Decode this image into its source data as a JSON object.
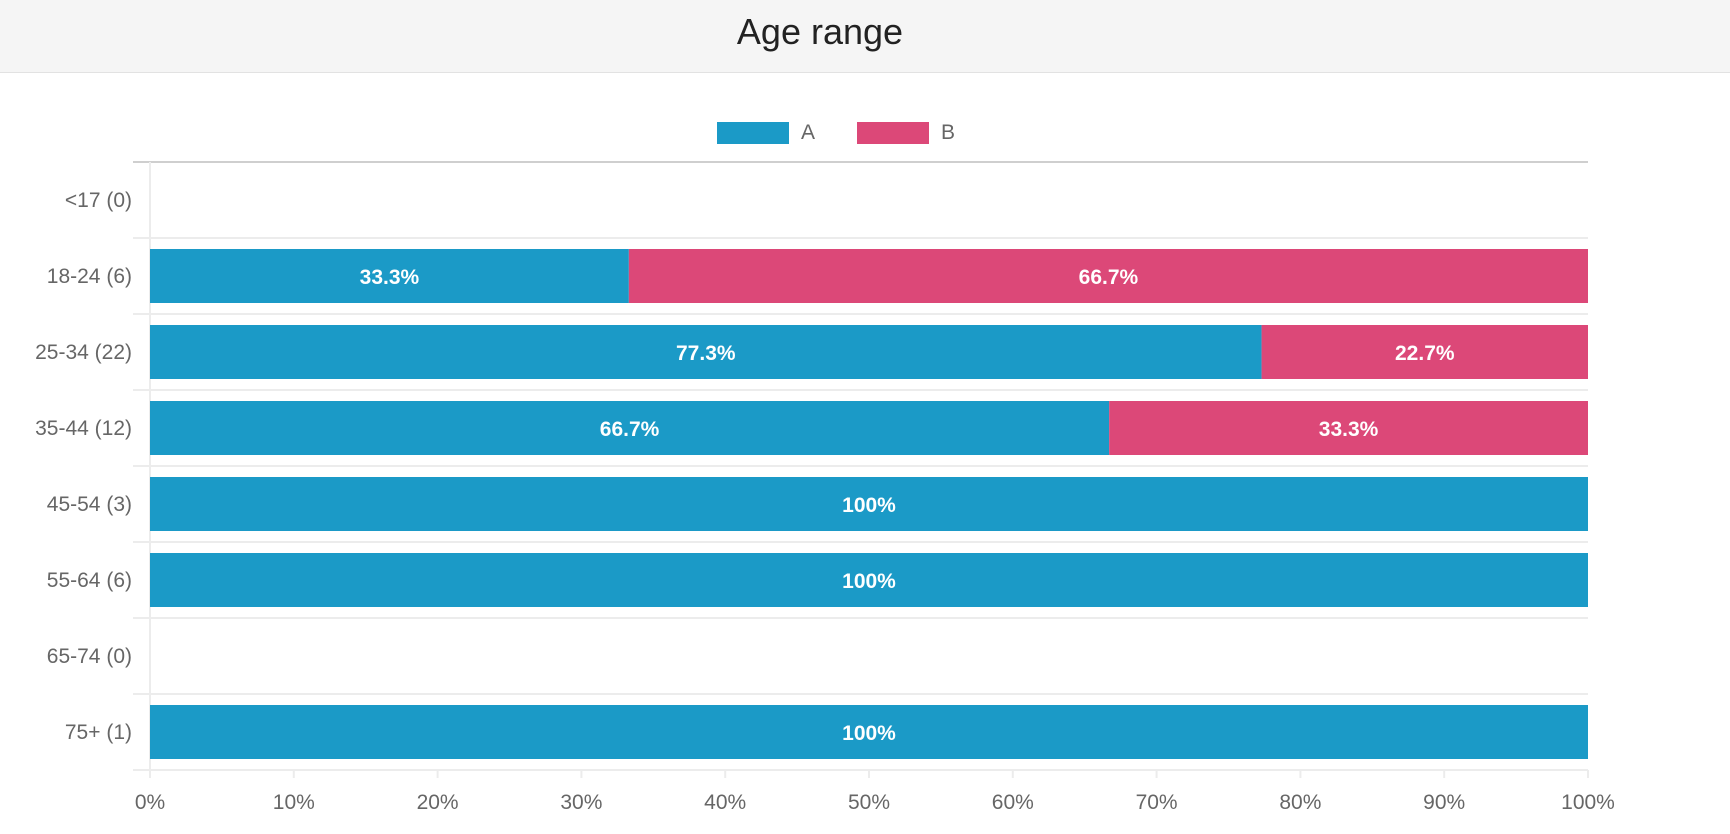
{
  "header": {
    "title": "Age range"
  },
  "legend": {
    "a": "A",
    "b": "B"
  },
  "colors": {
    "a": "#1b9ac7",
    "b": "#dc4878",
    "grid": "#ececec",
    "axis": "#cccccc"
  },
  "chart_data": {
    "type": "bar",
    "orientation": "horizontal",
    "stacked": true,
    "title": "Age range",
    "xlabel": "",
    "ylabel": "",
    "xlim": [
      0,
      100
    ],
    "x_ticks": [
      "0%",
      "10%",
      "20%",
      "30%",
      "40%",
      "50%",
      "60%",
      "70%",
      "80%",
      "90%",
      "100%"
    ],
    "categories": [
      "<17 (0)",
      "18-24 (6)",
      "25-34 (22)",
      "35-44 (12)",
      "45-54 (3)",
      "55-64 (6)",
      "65-74 (0)",
      "75+ (1)"
    ],
    "series": [
      {
        "name": "A",
        "values": [
          0,
          33.3,
          77.3,
          66.7,
          100,
          100,
          0,
          100
        ],
        "labels": [
          "",
          "33.3%",
          "77.3%",
          "66.7%",
          "100%",
          "100%",
          "",
          "100%"
        ]
      },
      {
        "name": "B",
        "values": [
          0,
          66.7,
          22.7,
          33.3,
          0,
          0,
          0,
          0
        ],
        "labels": [
          "",
          "66.7%",
          "22.7%",
          "33.3%",
          "",
          "",
          "",
          ""
        ]
      }
    ],
    "grid": true,
    "legend_position": "top"
  }
}
